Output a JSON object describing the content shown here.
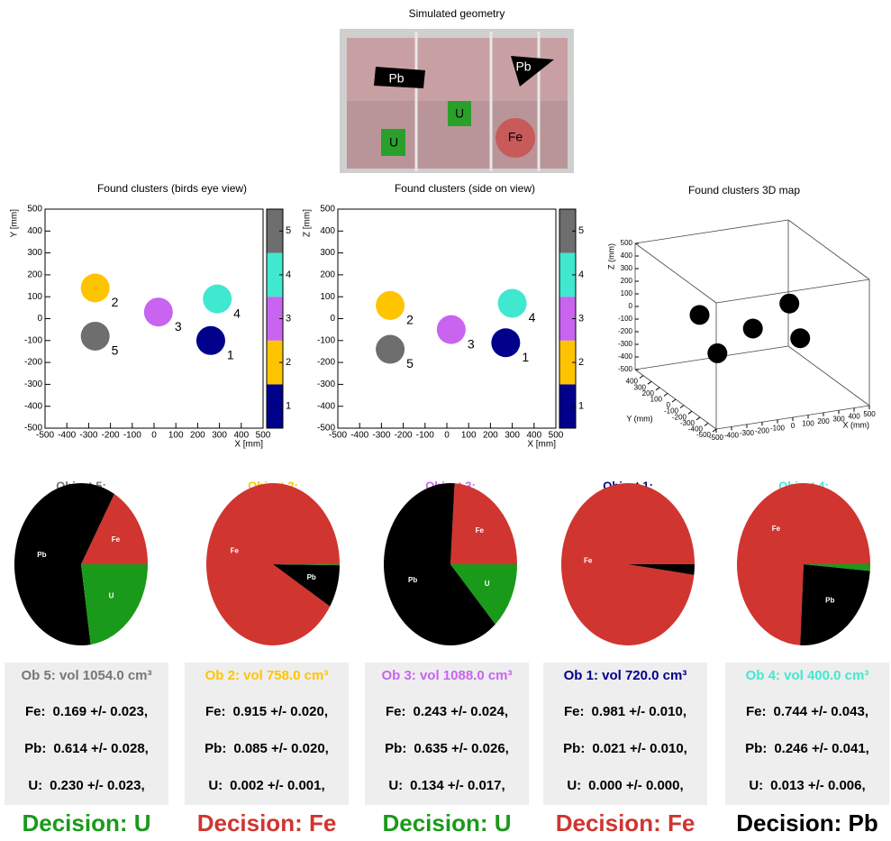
{
  "geometry": {
    "title": "Simulated geometry",
    "labels": [
      "Pb",
      "Pb",
      "U",
      "U",
      "Fe"
    ]
  },
  "chart_data": [
    {
      "type": "scatter",
      "title": "Found clusters (birds eye view)",
      "xlabel": "X [mm]",
      "ylabel": "Y [mm]",
      "x": [
        260,
        -270,
        20,
        290,
        -270
      ],
      "y": [
        -100,
        140,
        30,
        90,
        -80
      ],
      "point_labels": [
        "1",
        "2",
        "3",
        "4",
        "5"
      ],
      "colors": [
        "#00008b",
        "#ffc400",
        "#c864f0",
        "#40e8d0",
        "#6e6e6e"
      ],
      "xlim": [
        -500,
        500
      ],
      "ylim": [
        -500,
        500
      ],
      "xticks": [
        -500,
        -400,
        -300,
        -200,
        -100,
        0,
        100,
        200,
        300,
        400,
        500
      ],
      "yticks": [
        -500,
        -400,
        -300,
        -200,
        -100,
        0,
        100,
        200,
        300,
        400,
        500
      ],
      "zlim": [
        0.5,
        5.5
      ],
      "zticks": [
        1,
        2,
        3,
        4,
        5
      ],
      "colorbar_colors": [
        "#00008b",
        "#ffc400",
        "#c864f0",
        "#40e8d0",
        "#6e6e6e"
      ]
    },
    {
      "type": "scatter",
      "title": "Found clusters (side on view)",
      "xlabel": "X [mm]",
      "ylabel": "Z [mm]",
      "x": [
        270,
        -260,
        20,
        300,
        -260
      ],
      "y": [
        -110,
        60,
        -50,
        70,
        -140
      ],
      "point_labels": [
        "1",
        "2",
        "3",
        "4",
        "5"
      ],
      "colors": [
        "#00008b",
        "#ffc400",
        "#c864f0",
        "#40e8d0",
        "#6e6e6e"
      ],
      "xlim": [
        -500,
        500
      ],
      "ylim": [
        -500,
        500
      ],
      "xticks": [
        -500,
        -400,
        -300,
        -200,
        -100,
        0,
        100,
        200,
        300,
        400,
        500
      ],
      "yticks": [
        -500,
        -400,
        -300,
        -200,
        -100,
        0,
        100,
        200,
        300,
        400,
        500
      ],
      "zlim": [
        0.5,
        5.5
      ],
      "zticks": [
        1,
        2,
        3,
        4,
        5
      ],
      "colorbar_colors": [
        "#00008b",
        "#ffc400",
        "#c864f0",
        "#40e8d0",
        "#6e6e6e"
      ]
    },
    {
      "type": "scatter3d",
      "title": "Found clusters 3D map",
      "xlabel": "X (mm)",
      "ylabel": "Y (mm)",
      "zlabel": "Z (mm)",
      "x": [
        260,
        -270,
        20,
        290,
        -270
      ],
      "y": [
        -100,
        140,
        30,
        90,
        -80
      ],
      "z": [
        -110,
        60,
        -50,
        70,
        -140
      ],
      "color": "#000000",
      "xlim": [
        -500,
        500
      ],
      "ylim": [
        -500,
        500
      ],
      "zlim": [
        -500,
        500
      ],
      "xticks": [
        -500,
        -400,
        -300,
        -200,
        -100,
        0,
        100,
        200,
        300,
        400,
        500
      ],
      "yticks": [
        -500,
        -400,
        -300,
        -200,
        -100,
        0,
        100,
        200,
        300,
        400
      ],
      "zticks": [
        -500,
        -400,
        -300,
        -200,
        -100,
        0,
        100,
        200,
        300,
        400,
        500
      ]
    },
    {
      "type": "pie",
      "title": "Object 5:",
      "title_color": "#777777",
      "categories": [
        "Fe",
        "Pb",
        "U"
      ],
      "colors": [
        "#d03530",
        "#000000",
        "#1a9a1a"
      ],
      "values": [
        0.169,
        0.614,
        0.23
      ],
      "errors": [
        0.023,
        0.028,
        0.023
      ],
      "row_labels": [
        "Fe:",
        "Pb:",
        "U:"
      ],
      "value_labels": [
        "0.169 +/- 0.023,",
        "0.614 +/- 0.028,",
        "0.230 +/- 0.023,"
      ],
      "subtitle": "Ob 5: vol 1054.0 cm³",
      "decision": "Decision: U",
      "decision_color": "#1a9a1a"
    },
    {
      "type": "pie",
      "title": "Object 2:",
      "title_color": "#ffc400",
      "categories": [
        "Fe",
        "Pb",
        null
      ],
      "colors": [
        "#d03530",
        "#000000",
        "#1a9a1a"
      ],
      "values": [
        0.915,
        0.085,
        0.002
      ],
      "errors": [
        0.02,
        0.02,
        0.001
      ],
      "row_labels": [
        "Fe:",
        "Pb:",
        "U:"
      ],
      "value_labels": [
        "0.915 +/- 0.020,",
        "0.085 +/- 0.020,",
        "0.002 +/- 0.001,"
      ],
      "subtitle": "Ob 2: vol 758.0 cm³",
      "decision": "Decision: Fe",
      "decision_color": "#d03530"
    },
    {
      "type": "pie",
      "title": "Object 3:",
      "title_color": "#c864f0",
      "categories": [
        "Fe",
        "Pb",
        "U"
      ],
      "colors": [
        "#d03530",
        "#000000",
        "#1a9a1a"
      ],
      "values": [
        0.243,
        0.635,
        0.134
      ],
      "errors": [
        0.024,
        0.026,
        0.017
      ],
      "row_labels": [
        "Fe:",
        "Pb:",
        "U:"
      ],
      "value_labels": [
        "0.243 +/- 0.024,",
        "0.635 +/- 0.026,",
        "0.134 +/- 0.017,"
      ],
      "subtitle": "Ob 3: vol 1088.0 cm³",
      "decision": "Decision: U",
      "decision_color": "#1a9a1a"
    },
    {
      "type": "pie",
      "title": "Object 1:",
      "title_color": "#00008b",
      "categories": [
        "Fe",
        null,
        null
      ],
      "colors": [
        "#d03530",
        "#000000",
        "#1a9a1a"
      ],
      "values": [
        0.981,
        0.021,
        0.0
      ],
      "errors": [
        0.01,
        0.01,
        0.0
      ],
      "row_labels": [
        "Fe:",
        "Pb:",
        "U:"
      ],
      "value_labels": [
        "0.981 +/- 0.010,",
        "0.021 +/- 0.010,",
        "0.000 +/- 0.000,"
      ],
      "subtitle": "Ob 1: vol 720.0 cm³",
      "decision": "Decision: Fe",
      "decision_color": "#d03530"
    },
    {
      "type": "pie",
      "title": "Object 4:",
      "title_color": "#40e8d0",
      "categories": [
        "Fe",
        "Pb",
        null
      ],
      "colors": [
        "#d03530",
        "#000000",
        "#1a9a1a"
      ],
      "values": [
        0.744,
        0.246,
        0.013
      ],
      "errors": [
        0.043,
        0.041,
        0.006
      ],
      "row_labels": [
        "Fe:",
        "Pb:",
        "U:"
      ],
      "value_labels": [
        "0.744 +/- 0.043,",
        "0.246 +/- 0.041,",
        "0.013 +/- 0.006,"
      ],
      "subtitle": "Ob 4: vol 400.0 cm³",
      "decision": "Decision: Pb",
      "decision_color": "#000000"
    }
  ]
}
